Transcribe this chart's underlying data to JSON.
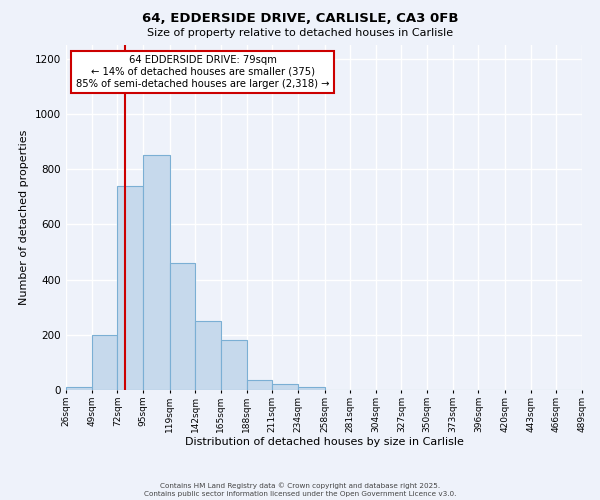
{
  "title": "64, EDDERSIDE DRIVE, CARLISLE, CA3 0FB",
  "subtitle": "Size of property relative to detached houses in Carlisle",
  "xlabel": "Distribution of detached houses by size in Carlisle",
  "ylabel": "Number of detached properties",
  "footer_lines": [
    "Contains HM Land Registry data © Crown copyright and database right 2025.",
    "Contains public sector information licensed under the Open Government Licence v3.0."
  ],
  "bin_edges": [
    26,
    49,
    72,
    95,
    119,
    142,
    165,
    188,
    211,
    234,
    258,
    281,
    304,
    327,
    350,
    373,
    396,
    420,
    443,
    466,
    489
  ],
  "bar_values": [
    10,
    200,
    740,
    850,
    460,
    250,
    180,
    35,
    20,
    10,
    0,
    0,
    0,
    0,
    0,
    0,
    0,
    0,
    0,
    0
  ],
  "bar_color": "#c6d9ec",
  "bar_edge_color": "#7bafd4",
  "background_color": "#eef2fa",
  "grid_color": "#ffffff",
  "ylim": [
    0,
    1250
  ],
  "yticks": [
    0,
    200,
    400,
    600,
    800,
    1000,
    1200
  ],
  "property_size": 79,
  "pct_smaller": 14,
  "n_smaller": 375,
  "pct_larger_semi": 85,
  "n_larger_semi": 2318,
  "vline_x": 79,
  "red_line_color": "#cc0000",
  "tick_labels": [
    "26sqm",
    "49sqm",
    "72sqm",
    "95sqm",
    "119sqm",
    "142sqm",
    "165sqm",
    "188sqm",
    "211sqm",
    "234sqm",
    "258sqm",
    "281sqm",
    "304sqm",
    "327sqm",
    "350sqm",
    "373sqm",
    "396sqm",
    "420sqm",
    "443sqm",
    "466sqm",
    "489sqm"
  ]
}
